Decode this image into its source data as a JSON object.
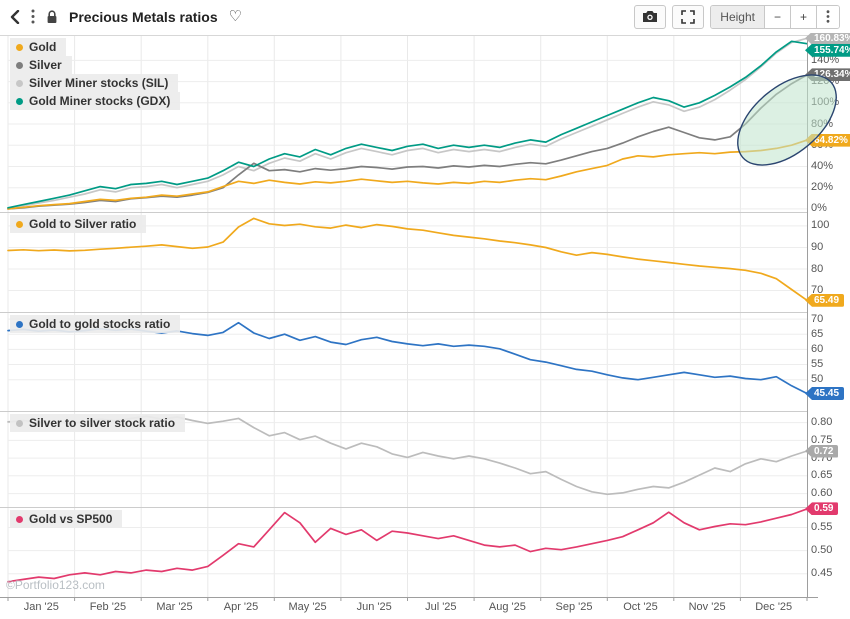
{
  "header": {
    "title": "Precious Metals ratios",
    "favorite_icon": "♡"
  },
  "toolbar": {
    "height_label": "Height",
    "minus_label": "−",
    "plus_label": "+"
  },
  "watermark": "©Portfolio123.com",
  "x_axis": {
    "labels": [
      "Jan '25",
      "Feb '25",
      "Mar '25",
      "Apr '25",
      "May '25",
      "Jun '25",
      "Jul '25",
      "Aug '25",
      "Sep '25",
      "Oct '25",
      "Nov '25",
      "Dec '25"
    ],
    "range": "Jan 2025 – Dec 2025"
  },
  "chart_data": [
    {
      "type": "line",
      "name": "performance-percent",
      "legend": [
        {
          "label": "Gold",
          "color": "#f0a91d"
        },
        {
          "label": "Silver",
          "color": "#7e7e7e"
        },
        {
          "label": "Silver Miner stocks (SIL)",
          "color": "#c7c7c7"
        },
        {
          "label": "Gold Miner stocks (GDX)",
          "color": "#009b85"
        }
      ],
      "ylim": [
        -2,
        163
      ],
      "y_ticks": [
        {
          "v": 0,
          "label": "0%"
        },
        {
          "v": 20,
          "label": "20%"
        },
        {
          "v": 40,
          "label": "40%"
        },
        {
          "v": 60,
          "label": "60%"
        },
        {
          "v": 80,
          "label": "80%"
        },
        {
          "v": 100,
          "label": "100%"
        },
        {
          "v": 120,
          "label": "120%"
        },
        {
          "v": 140,
          "label": "140%"
        }
      ],
      "series": [
        {
          "name": "Silver Miner stocks (SIL)",
          "color": "#c7c7c7",
          "values": [
            0.5,
            3,
            5.5,
            8,
            11,
            14,
            18,
            16,
            20,
            21,
            23,
            20,
            23,
            26,
            32,
            40,
            36,
            43,
            48,
            45,
            52,
            47,
            53,
            57,
            54,
            51,
            55,
            57,
            53,
            56,
            54,
            56,
            54,
            58,
            61,
            59,
            66,
            72,
            78,
            84,
            90,
            96,
            101,
            98,
            92,
            96,
            103,
            112,
            122,
            134,
            147,
            157,
            160.83
          ]
        },
        {
          "name": "Silver",
          "color": "#7e7e7e",
          "values": [
            0,
            1,
            2.5,
            3.5,
            4.5,
            6,
            8,
            7,
            9.5,
            10.5,
            12,
            11,
            13,
            15.5,
            20,
            32,
            43,
            36,
            37,
            35,
            38,
            36.5,
            38,
            40,
            39,
            37.5,
            39.5,
            40,
            38.5,
            40.5,
            39.5,
            41,
            40,
            42,
            43.5,
            42.5,
            46,
            50,
            54,
            57,
            62,
            68,
            73,
            77,
            72,
            67,
            65,
            68,
            80,
            95,
            108,
            118,
            126.34
          ]
        },
        {
          "name": "Gold",
          "color": "#f0a91d",
          "values": [
            0,
            1.5,
            3,
            4,
            5,
            7,
            9,
            8,
            10,
            11,
            13,
            12,
            14,
            16,
            21,
            26,
            24,
            27,
            25,
            23.5,
            25.5,
            24.5,
            26,
            28,
            26.5,
            25,
            26,
            24.5,
            23.5,
            25,
            24,
            26,
            25,
            27,
            28.5,
            27.5,
            31,
            35,
            38,
            41,
            47,
            50,
            49,
            51,
            52,
            53,
            52,
            53.5,
            54,
            55,
            57,
            60,
            64.82
          ]
        },
        {
          "name": "Gold Miner stocks (GDX)",
          "color": "#009b85",
          "values": [
            1,
            4,
            7,
            10,
            13,
            17,
            21,
            19,
            23,
            24,
            26,
            23,
            26,
            29,
            36,
            44,
            40,
            47,
            52,
            49,
            56,
            51,
            57,
            61,
            58,
            55,
            59,
            61,
            57,
            60,
            58,
            60,
            58,
            62,
            65,
            63,
            70,
            76,
            82,
            88,
            94,
            100,
            105,
            102,
            96,
            100,
            107,
            115,
            124,
            135,
            148,
            158,
            155.74
          ]
        }
      ],
      "badges": [
        {
          "label": "160.83%",
          "v": 160.83,
          "color": "#b5b5b5"
        },
        {
          "label": "155.74%",
          "v": 155.74,
          "color": "#009b85"
        },
        {
          "label": "126.34%",
          "v": 126.34,
          "color": "#6f6f6f"
        },
        {
          "label": "64.82%",
          "v": 64.82,
          "color": "#f0a91d"
        }
      ],
      "annotation": {
        "shape": "ellipse",
        "cx": 787,
        "cy": 120,
        "rx": 58,
        "ry": 33,
        "rotation": -40,
        "fill": "#bfe3cc",
        "fill_opacity": 0.55,
        "stroke": "#2b4570"
      }
    },
    {
      "type": "line",
      "name": "gold-to-silver-ratio",
      "legend": [
        {
          "label": "Gold to Silver ratio",
          "color": "#f0a91d"
        }
      ],
      "ylim": [
        60.5,
        106
      ],
      "y_ticks": [
        {
          "v": 70,
          "label": "70"
        },
        {
          "v": 80,
          "label": "80"
        },
        {
          "v": 90,
          "label": "90"
        },
        {
          "v": 100,
          "label": "100"
        }
      ],
      "series": [
        {
          "name": "Gold to Silver ratio",
          "color": "#f0a91d",
          "values": [
            88.6,
            88.9,
            88.5,
            88.8,
            88.4,
            88.7,
            89.2,
            89.6,
            90.1,
            90.6,
            91.2,
            90.4,
            89.6,
            90.2,
            92.5,
            99.5,
            103.5,
            101.0,
            100.2,
            100.8,
            99.6,
            99.0,
            100.4,
            99.2,
            100.6,
            99.8,
            98.6,
            98.0,
            96.8,
            95.6,
            94.8,
            94.0,
            93.0,
            92.2,
            91.2,
            90.0,
            88.0,
            86.4,
            87.6,
            86.8,
            85.6,
            84.6,
            83.8,
            83.0,
            82.2,
            81.4,
            80.8,
            80.2,
            79.4,
            78.0,
            75.5,
            70.5,
            65.49
          ]
        }
      ],
      "badges": [
        {
          "label": "65.49",
          "v": 65.49,
          "color": "#f0a91d"
        }
      ]
    },
    {
      "type": "line",
      "name": "gold-to-gold-stocks-ratio",
      "legend": [
        {
          "label": "Gold to gold stocks ratio",
          "color": "#2e74c4"
        }
      ],
      "ylim": [
        40,
        72
      ],
      "y_ticks": [
        {
          "v": 50,
          "label": "50"
        },
        {
          "v": 55,
          "label": "55"
        },
        {
          "v": 60,
          "label": "60"
        },
        {
          "v": 65,
          "label": "65"
        },
        {
          "v": 70,
          "label": "70"
        }
      ],
      "series": [
        {
          "name": "Gold to gold stocks ratio",
          "color": "#2e74c4",
          "values": [
            66.2,
            66.6,
            66.0,
            66.4,
            65.8,
            66.2,
            66.8,
            66.3,
            66.7,
            66.0,
            65.4,
            66.1,
            65.2,
            64.6,
            65.6,
            68.8,
            65.4,
            63.6,
            65.0,
            63.0,
            64.2,
            62.4,
            61.6,
            63.2,
            64.0,
            62.6,
            61.8,
            61.2,
            61.8,
            61.0,
            61.4,
            61.0,
            60.2,
            58.4,
            56.6,
            55.8,
            54.6,
            53.4,
            52.8,
            51.6,
            50.6,
            50.0,
            50.8,
            51.6,
            52.4,
            51.6,
            50.8,
            51.2,
            50.4,
            50.0,
            51.0,
            48.0,
            45.45
          ]
        }
      ],
      "badges": [
        {
          "label": "45.45",
          "v": 45.45,
          "color": "#2e74c4"
        }
      ]
    },
    {
      "type": "line",
      "name": "silver-to-silver-stock-ratio",
      "legend": [
        {
          "label": "Silver to silver stock ratio",
          "color": "#c2c2c2"
        }
      ],
      "ylim": [
        0.565,
        0.83
      ],
      "y_ticks": [
        {
          "v": 0.6,
          "label": "0.60"
        },
        {
          "v": 0.65,
          "label": "0.65"
        },
        {
          "v": 0.7,
          "label": "0.70"
        },
        {
          "v": 0.75,
          "label": "0.75"
        },
        {
          "v": 0.8,
          "label": "0.80"
        }
      ],
      "series": [
        {
          "name": "Silver to silver stock ratio",
          "color": "#bcbcbc",
          "values": [
            0.802,
            0.806,
            0.8,
            0.804,
            0.798,
            0.803,
            0.81,
            0.805,
            0.812,
            0.818,
            0.81,
            0.816,
            0.806,
            0.798,
            0.804,
            0.812,
            0.786,
            0.763,
            0.772,
            0.752,
            0.762,
            0.742,
            0.726,
            0.742,
            0.732,
            0.712,
            0.702,
            0.716,
            0.706,
            0.698,
            0.706,
            0.698,
            0.686,
            0.672,
            0.656,
            0.662,
            0.64,
            0.62,
            0.605,
            0.598,
            0.602,
            0.612,
            0.62,
            0.616,
            0.632,
            0.652,
            0.672,
            0.662,
            0.684,
            0.698,
            0.69,
            0.706,
            0.72
          ]
        }
      ],
      "badges": [
        {
          "label": "0.72",
          "v": 0.72,
          "color": "#a9a9a9"
        }
      ]
    },
    {
      "type": "line",
      "name": "gold-vs-sp500",
      "legend": [
        {
          "label": "Gold vs SP500",
          "color": "#e23a6d"
        }
      ],
      "ylim": [
        0.4,
        0.592
      ],
      "y_ticks": [
        {
          "v": 0.45,
          "label": "0.45"
        },
        {
          "v": 0.5,
          "label": "0.50"
        },
        {
          "v": 0.55,
          "label": "0.55"
        }
      ],
      "series": [
        {
          "name": "Gold vs SP500",
          "color": "#e23a6d",
          "values": [
            0.433,
            0.438,
            0.443,
            0.44,
            0.448,
            0.452,
            0.448,
            0.455,
            0.452,
            0.458,
            0.455,
            0.462,
            0.458,
            0.466,
            0.49,
            0.515,
            0.508,
            0.545,
            0.582,
            0.56,
            0.518,
            0.548,
            0.535,
            0.545,
            0.522,
            0.542,
            0.538,
            0.532,
            0.526,
            0.532,
            0.522,
            0.512,
            0.508,
            0.512,
            0.498,
            0.505,
            0.502,
            0.508,
            0.515,
            0.522,
            0.53,
            0.545,
            0.56,
            0.583,
            0.56,
            0.545,
            0.552,
            0.558,
            0.556,
            0.562,
            0.57,
            0.578,
            0.59
          ]
        }
      ],
      "badges": [
        {
          "label": "0.59",
          "v": 0.59,
          "color": "#e23a6d"
        }
      ]
    }
  ]
}
